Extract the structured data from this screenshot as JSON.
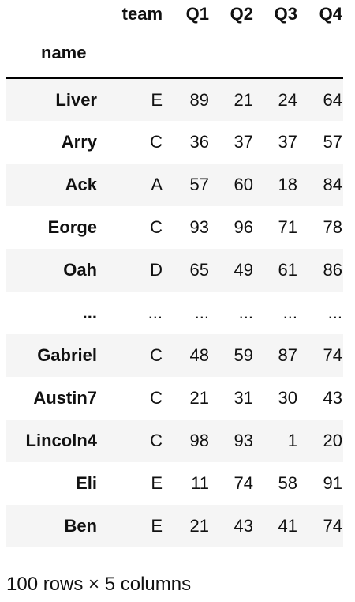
{
  "dataframe": {
    "columns": [
      "team",
      "Q1",
      "Q2",
      "Q3",
      "Q4"
    ],
    "index_name": "name",
    "rows": [
      {
        "name": "Liver",
        "team": "E",
        "Q1": "89",
        "Q2": "21",
        "Q3": "24",
        "Q4": "64"
      },
      {
        "name": "Arry",
        "team": "C",
        "Q1": "36",
        "Q2": "37",
        "Q3": "37",
        "Q4": "57"
      },
      {
        "name": "Ack",
        "team": "A",
        "Q1": "57",
        "Q2": "60",
        "Q3": "18",
        "Q4": "84"
      },
      {
        "name": "Eorge",
        "team": "C",
        "Q1": "93",
        "Q2": "96",
        "Q3": "71",
        "Q4": "78"
      },
      {
        "name": "Oah",
        "team": "D",
        "Q1": "65",
        "Q2": "49",
        "Q3": "61",
        "Q4": "86"
      },
      {
        "name": "...",
        "team": "...",
        "Q1": "...",
        "Q2": "...",
        "Q3": "...",
        "Q4": "..."
      },
      {
        "name": "Gabriel",
        "team": "C",
        "Q1": "48",
        "Q2": "59",
        "Q3": "87",
        "Q4": "74"
      },
      {
        "name": "Austin7",
        "team": "C",
        "Q1": "21",
        "Q2": "31",
        "Q3": "30",
        "Q4": "43"
      },
      {
        "name": "Lincoln4",
        "team": "C",
        "Q1": "98",
        "Q2": "93",
        "Q3": "1",
        "Q4": "20"
      },
      {
        "name": "Eli",
        "team": "E",
        "Q1": "11",
        "Q2": "74",
        "Q3": "58",
        "Q4": "91"
      },
      {
        "name": "Ben",
        "team": "E",
        "Q1": "21",
        "Q2": "43",
        "Q3": "41",
        "Q4": "74"
      }
    ],
    "shape_text": "100 rows × 5 columns"
  },
  "colors": {
    "stripe": "#f5f5f5",
    "text": "#111111",
    "header_rule": "#000000"
  }
}
